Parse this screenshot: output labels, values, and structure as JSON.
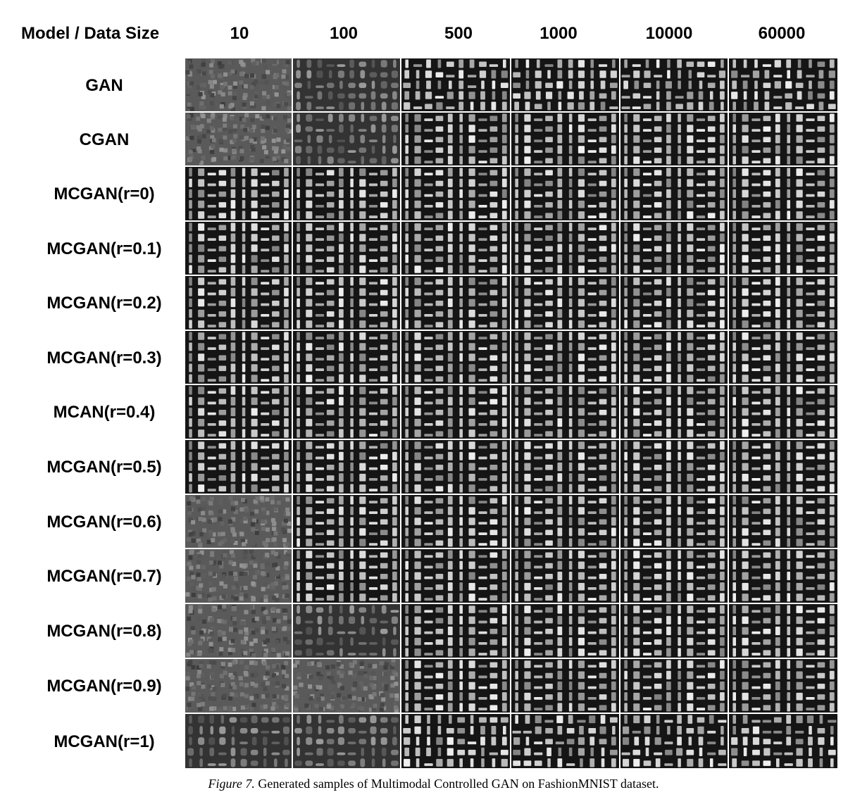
{
  "header": {
    "corner": "Model / Data Size",
    "data_sizes": [
      "10",
      "100",
      "500",
      "1000",
      "10000",
      "60000"
    ]
  },
  "rows": [
    {
      "label": "GAN",
      "cells": [
        "noise",
        "blurry",
        "mixed",
        "mixed",
        "mixed",
        "mixed"
      ]
    },
    {
      "label": "CGAN",
      "cells": [
        "noise",
        "blurry",
        "ordered",
        "ordered",
        "ordered",
        "ordered"
      ]
    },
    {
      "label": "MCGAN(r=0)",
      "cells": [
        "ordered",
        "ordered",
        "ordered",
        "ordered",
        "ordered",
        "ordered"
      ]
    },
    {
      "label": "MCGAN(r=0.1)",
      "cells": [
        "ordered",
        "ordered",
        "ordered",
        "ordered",
        "ordered",
        "ordered"
      ]
    },
    {
      "label": "MCGAN(r=0.2)",
      "cells": [
        "ordered",
        "ordered",
        "ordered",
        "ordered",
        "ordered",
        "ordered"
      ]
    },
    {
      "label": "MCGAN(r=0.3)",
      "cells": [
        "ordered",
        "ordered",
        "ordered",
        "ordered",
        "ordered",
        "ordered"
      ]
    },
    {
      "label": "MCAN(r=0.4)",
      "cells": [
        "ordered",
        "ordered",
        "ordered",
        "ordered",
        "ordered",
        "ordered"
      ]
    },
    {
      "label": "MCGAN(r=0.5)",
      "cells": [
        "ordered",
        "ordered",
        "ordered",
        "ordered",
        "ordered",
        "ordered"
      ]
    },
    {
      "label": "MCGAN(r=0.6)",
      "cells": [
        "noise",
        "ordered",
        "ordered",
        "ordered",
        "ordered",
        "ordered"
      ]
    },
    {
      "label": "MCGAN(r=0.7)",
      "cells": [
        "noise",
        "ordered",
        "ordered",
        "ordered",
        "ordered",
        "ordered"
      ]
    },
    {
      "label": "MCGAN(r=0.8)",
      "cells": [
        "noise",
        "blurry",
        "ordered",
        "ordered",
        "ordered",
        "ordered"
      ]
    },
    {
      "label": "MCGAN(r=0.9)",
      "cells": [
        "noise",
        "noise",
        "ordered",
        "ordered",
        "ordered",
        "ordered"
      ]
    },
    {
      "label": "MCGAN(r=1)",
      "cells": [
        "blurry",
        "blurry",
        "mixed",
        "mixed",
        "mixed",
        "mixed"
      ]
    }
  ],
  "caption": {
    "figure_label": "Figure 7.",
    "text": "Generated samples of Multimodal Controlled GAN on FashionMNIST dataset."
  }
}
